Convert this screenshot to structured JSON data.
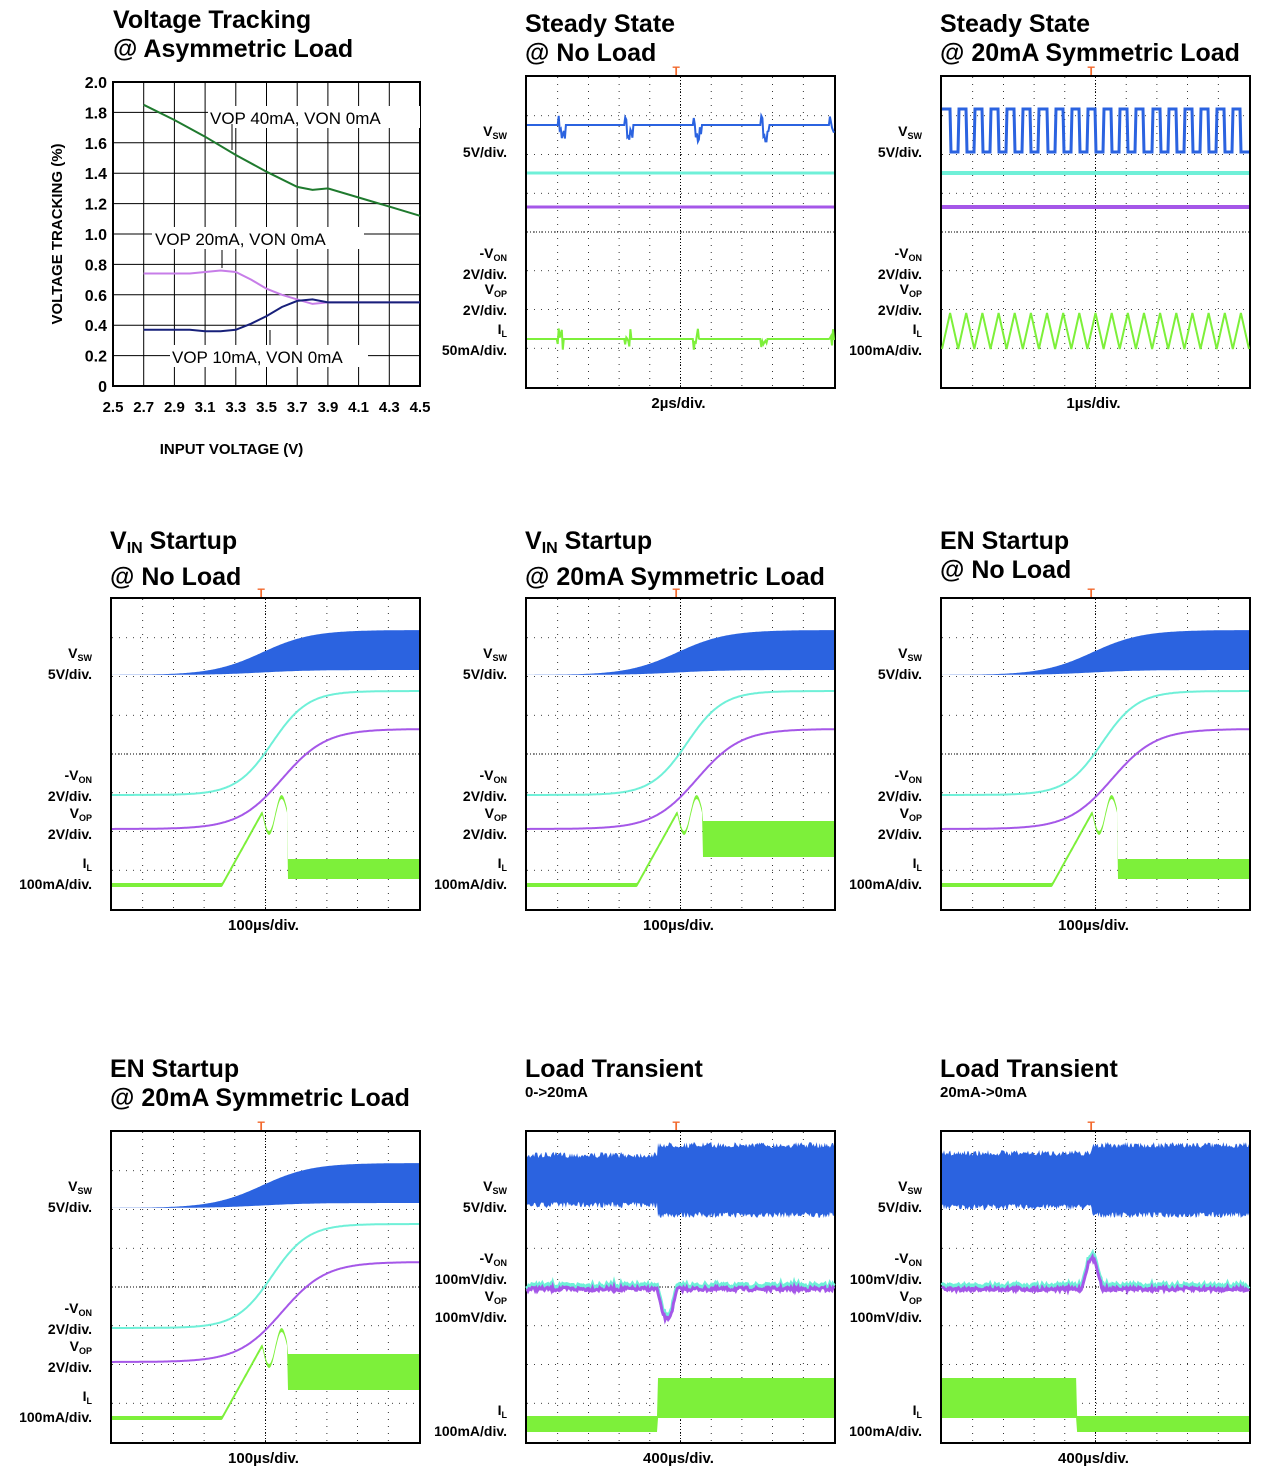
{
  "panels": [
    {
      "title": "Voltage Tracking",
      "subtitle": "@ Asymmetric Load"
    },
    {
      "title": "Steady State",
      "subtitle": "@ No Load",
      "timebase": "2µs/div."
    },
    {
      "title": "Steady State",
      "subtitle": "@ 20mA Symmetric Load",
      "timebase": "1µs/div."
    },
    {
      "title_main": "V",
      "title_sub": "IN",
      "title_rest": " Startup",
      "subtitle": "@ No Load",
      "timebase": "100µs/div."
    },
    {
      "title_main": "V",
      "title_sub": "IN",
      "title_rest": " Startup",
      "subtitle": "@ 20mA Symmetric Load",
      "timebase": "100µs/div."
    },
    {
      "title": "EN Startup",
      "subtitle": "@ No Load",
      "timebase": "100µs/div."
    },
    {
      "title": "EN Startup",
      "subtitle": "@ 20mA Symmetric Load",
      "timebase": "100µs/div."
    },
    {
      "title": "Load Transient",
      "subtitle": "0->20mA",
      "timebase": "400µs/div."
    },
    {
      "title": "Load Transient",
      "subtitle": "20mA->0mA",
      "timebase": "400µs/div."
    }
  ],
  "channels": {
    "vsw": {
      "name": "V",
      "sub": "SW",
      "scale5": "5V/div."
    },
    "von": {
      "name": "-V",
      "sub": "ON",
      "scale2": "2V/div.",
      "scale100m": "100mV/div."
    },
    "vop": {
      "name": "V",
      "sub": "OP",
      "scale2": "2V/div.",
      "scale100m": "100mV/div."
    },
    "il": {
      "name": "I",
      "sub": "L",
      "scale50": "50mA/div.",
      "scale100": "100mA/div."
    }
  },
  "colors": {
    "vsw": "#2b63e0",
    "von": "#6ff0d8",
    "vop": "#a557e8",
    "il": "#7df03a",
    "grid": "#000000",
    "trigger": "#f26a2e",
    "c1": "#1f7a2e",
    "c2": "#c77de8",
    "c3": "#17207a"
  },
  "chart_data": {
    "type": "line",
    "title": "Voltage Tracking @ Asymmetric Load",
    "xlabel": "INPUT VOLTAGE (V)",
    "ylabel": "VOLTAGE TRACKING (%)",
    "xlim": [
      2.5,
      4.5
    ],
    "ylim": [
      0,
      2.0
    ],
    "xticks": [
      "2.5",
      "2.7",
      "2.9",
      "3.1",
      "3.3",
      "3.5",
      "3.7",
      "3.9",
      "4.1",
      "4.3",
      "4.5"
    ],
    "yticks": [
      "0",
      "0.2",
      "0.4",
      "0.6",
      "0.8",
      "1.0",
      "1.2",
      "1.4",
      "1.6",
      "1.8",
      "2.0"
    ],
    "grid": true,
    "series": [
      {
        "name": "VOP 40mA, VON 0mA",
        "color": "#1f7a2e",
        "x": [
          2.7,
          2.9,
          3.1,
          3.3,
          3.5,
          3.7,
          3.8,
          3.9,
          4.1,
          4.3,
          4.5
        ],
        "y": [
          1.85,
          1.75,
          1.64,
          1.52,
          1.41,
          1.31,
          1.29,
          1.3,
          1.24,
          1.18,
          1.12
        ]
      },
      {
        "name": "VOP 20mA, VON 0mA",
        "color": "#c77de8",
        "x": [
          2.7,
          2.9,
          3.0,
          3.1,
          3.2,
          3.3,
          3.4,
          3.5,
          3.6,
          3.7,
          3.8,
          3.9,
          4.1,
          4.3,
          4.5
        ],
        "y": [
          0.74,
          0.74,
          0.74,
          0.75,
          0.76,
          0.75,
          0.7,
          0.64,
          0.6,
          0.57,
          0.54,
          0.55,
          0.55,
          0.55,
          0.55
        ]
      },
      {
        "name": "VOP 10mA, VON 0mA",
        "color": "#17207a",
        "x": [
          2.7,
          2.9,
          3.0,
          3.1,
          3.2,
          3.3,
          3.4,
          3.5,
          3.6,
          3.7,
          3.8,
          3.9,
          4.1,
          4.3,
          4.5
        ],
        "y": [
          0.37,
          0.37,
          0.37,
          0.36,
          0.36,
          0.37,
          0.41,
          0.46,
          0.52,
          0.56,
          0.57,
          0.55,
          0.55,
          0.55,
          0.55
        ]
      }
    ],
    "annotations": [
      "VOP 40mA, VON 0mA",
      "VOP 20mA, VON 0mA",
      "VOP 10mA, VON 0mA"
    ]
  }
}
